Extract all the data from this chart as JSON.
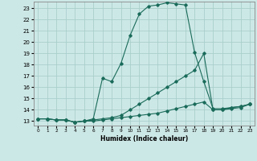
{
  "xlabel": "Humidex (Indice chaleur)",
  "background_color": "#cce8e6",
  "grid_color": "#aacfcc",
  "line_color": "#1a6b5a",
  "xlim": [
    -0.5,
    23.5
  ],
  "ylim": [
    12.6,
    23.6
  ],
  "yticks": [
    13,
    14,
    15,
    16,
    17,
    18,
    19,
    20,
    21,
    22,
    23
  ],
  "xticks": [
    0,
    1,
    2,
    3,
    4,
    5,
    6,
    7,
    8,
    9,
    10,
    11,
    12,
    13,
    14,
    15,
    16,
    17,
    18,
    19,
    20,
    21,
    22,
    23
  ],
  "line1_x": [
    0,
    1,
    2,
    3,
    4,
    5,
    6,
    7,
    8,
    9,
    10,
    11,
    12,
    13,
    14,
    15,
    16,
    17,
    18,
    19,
    20,
    21,
    22,
    23
  ],
  "line1_y": [
    13.2,
    13.2,
    13.1,
    13.1,
    12.9,
    13.0,
    13.0,
    13.1,
    13.2,
    13.3,
    13.4,
    13.5,
    13.6,
    13.7,
    13.9,
    14.1,
    14.3,
    14.5,
    14.7,
    14.0,
    14.0,
    14.1,
    14.2,
    14.5
  ],
  "line2_x": [
    0,
    1,
    2,
    3,
    4,
    5,
    6,
    7,
    8,
    9,
    10,
    11,
    12,
    13,
    14,
    15,
    16,
    17,
    18,
    19,
    20,
    21,
    22,
    23
  ],
  "line2_y": [
    13.2,
    13.2,
    13.1,
    13.1,
    12.9,
    13.0,
    13.2,
    16.8,
    16.5,
    18.1,
    20.6,
    22.5,
    23.2,
    23.3,
    23.5,
    23.4,
    23.3,
    19.1,
    16.5,
    14.1,
    14.1,
    14.2,
    14.3,
    14.5
  ],
  "line3_x": [
    0,
    1,
    2,
    3,
    4,
    5,
    6,
    7,
    8,
    9,
    10,
    11,
    12,
    13,
    14,
    15,
    16,
    17,
    18,
    19,
    20,
    21,
    22,
    23
  ],
  "line3_y": [
    13.2,
    13.2,
    13.1,
    13.1,
    12.9,
    13.0,
    13.1,
    13.2,
    13.3,
    13.5,
    14.0,
    14.5,
    15.0,
    15.5,
    16.0,
    16.5,
    17.0,
    17.5,
    19.0,
    14.0,
    14.0,
    14.2,
    14.3,
    14.5
  ]
}
